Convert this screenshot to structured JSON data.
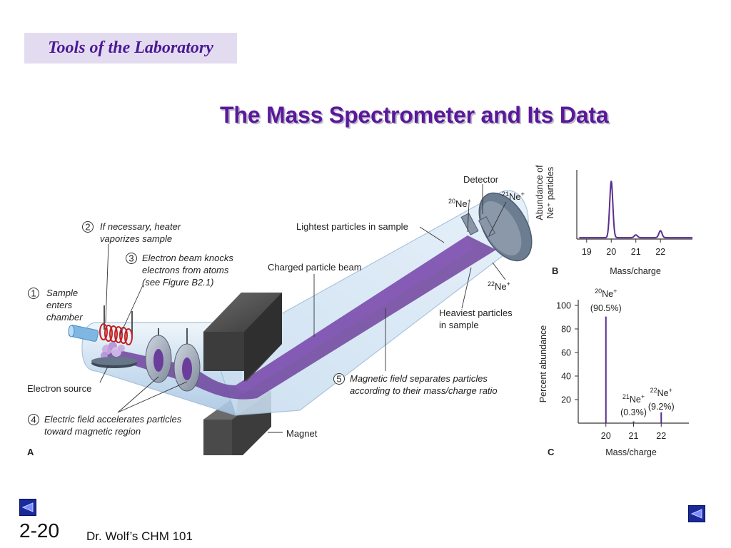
{
  "header": {
    "section": "Tools of the Laboratory"
  },
  "slide": {
    "title": "The Mass Spectrometer and Its Data",
    "number": "2-20",
    "footer": "Dr. Wolf’s CHM 101"
  },
  "diagram": {
    "panel": "A",
    "steps": [
      {
        "num": "1",
        "text": [
          "Sample",
          "enters",
          "chamber"
        ]
      },
      {
        "num": "2",
        "text": [
          "If necessary, heater",
          "vaporizes sample"
        ]
      },
      {
        "num": "3",
        "text": [
          "Electron beam knocks",
          "electrons from atoms",
          "(see Figure B2.1)"
        ]
      },
      {
        "num": "4",
        "text": [
          "Electric field accelerates particles",
          "toward magnetic region"
        ]
      },
      {
        "num": "5",
        "text": [
          "Magnetic field separates particles",
          "according to their mass/charge ratio"
        ]
      }
    ],
    "labels": {
      "detector": "Detector",
      "lightest": "Lightest particles in sample",
      "beam": "Charged particle beam",
      "heaviest": [
        "Heaviest particles",
        "in sample"
      ],
      "electron_source": "Electron source",
      "magnet": "Magnet"
    },
    "isotopes": [
      {
        "mass": "20",
        "sym": "Ne",
        "charge": "+"
      },
      {
        "mass": "21",
        "sym": "Ne",
        "charge": "+"
      },
      {
        "mass": "22",
        "sym": "Ne",
        "charge": "+"
      }
    ]
  },
  "colors": {
    "beam": "#6b3d9a",
    "title": "#5a189a",
    "header_bg": "#e3dcf0",
    "tube": "#cfe2f2",
    "magnet": "#4a4a4a",
    "nav": "#1a2a9a"
  },
  "chart_data": [
    {
      "panel": "B",
      "type": "line",
      "xlabel": "Mass/charge",
      "ylabel": [
        "Abundance of",
        "Ne⁺ particles"
      ],
      "x_ticks": [
        19,
        20,
        21,
        22
      ],
      "xlim": [
        18.6,
        23.3
      ],
      "peaks": [
        {
          "x": 20.0,
          "height": 0.82
        },
        {
          "x": 21.0,
          "height": 0.04
        },
        {
          "x": 22.0,
          "height": 0.1
        }
      ],
      "baseline": 0.02
    },
    {
      "panel": "C",
      "type": "bar",
      "xlabel": "Mass/charge",
      "ylabel": "Percent abundance",
      "y_ticks": [
        20,
        40,
        60,
        80,
        100
      ],
      "ylim": [
        0,
        100
      ],
      "x_ticks": [
        20,
        21,
        22
      ],
      "xlim": [
        19.0,
        23.0
      ],
      "bars": [
        {
          "x": 20,
          "value": 90.5,
          "label_mass": "20",
          "label_sym": "Ne",
          "label_charge": "+",
          "label_pct": "(90.5%)"
        },
        {
          "x": 21,
          "value": 0.3,
          "label_mass": "21",
          "label_sym": "Ne",
          "label_charge": "+",
          "label_pct": "(0.3%)"
        },
        {
          "x": 22,
          "value": 9.2,
          "label_mass": "22",
          "label_sym": "Ne",
          "label_charge": "+",
          "label_pct": "(9.2%)"
        }
      ]
    }
  ]
}
